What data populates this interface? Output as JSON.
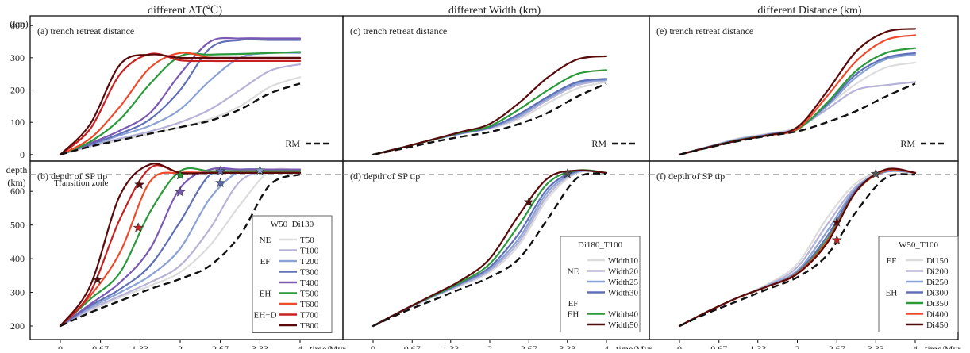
{
  "columns": [
    {
      "header": "different ΔT(℃)"
    },
    {
      "header": "different Width (km)"
    },
    {
      "header": "different Distance (km)"
    }
  ],
  "top_yunit": "(km)",
  "bottom_yunit": [
    "depth",
    "(km)"
  ],
  "xlabel": "time/Myr",
  "xticks": [
    "0",
    "0.67",
    "1.33",
    "2",
    "2.67",
    "3.33",
    "4"
  ],
  "top_yticks": [
    "0",
    "100",
    "200",
    "300",
    "400"
  ],
  "bottom_yticks": [
    "200",
    "300",
    "400",
    "500",
    "600"
  ],
  "transition_label": "Transition zone",
  "rm_label": "RM",
  "chart_data": [
    {
      "panel": "a",
      "type": "line",
      "title": "(a) trench retreat distance",
      "xlim": [
        0,
        4
      ],
      "ylim": [
        -20,
        430
      ],
      "x": [
        0,
        0.5,
        1,
        1.5,
        2,
        2.5,
        3,
        3.5,
        4
      ],
      "rm": [
        0,
        25,
        45,
        65,
        85,
        105,
        140,
        190,
        220
      ],
      "series": [
        {
          "name": "T50",
          "color": "#dcdcdc",
          "values": [
            0,
            25,
            45,
            65,
            85,
            110,
            150,
            210,
            240
          ]
        },
        {
          "name": "T100",
          "color": "#b7b3d8",
          "values": [
            0,
            28,
            50,
            72,
            100,
            140,
            200,
            260,
            280
          ]
        },
        {
          "name": "T200",
          "color": "#8aa2d6",
          "values": [
            0,
            30,
            60,
            90,
            140,
            230,
            300,
            315,
            315
          ]
        },
        {
          "name": "T300",
          "color": "#6070b8",
          "values": [
            0,
            32,
            65,
            110,
            200,
            330,
            355,
            355,
            355
          ]
        },
        {
          "name": "T400",
          "color": "#7b5ab5",
          "values": [
            0,
            35,
            75,
            130,
            250,
            350,
            360,
            360,
            360
          ]
        },
        {
          "name": "T500",
          "color": "#2a9a3a",
          "values": [
            0,
            40,
            110,
            220,
            305,
            310,
            312,
            315,
            318
          ]
        },
        {
          "name": "T600",
          "color": "#f04a2a",
          "values": [
            0,
            50,
            150,
            270,
            315,
            300,
            298,
            298,
            298
          ]
        },
        {
          "name": "T700",
          "color": "#c82020",
          "values": [
            0,
            80,
            250,
            312,
            292,
            290,
            290,
            290,
            290
          ]
        },
        {
          "name": "T800",
          "color": "#5a0a0a",
          "values": [
            0,
            95,
            280,
            310,
            300,
            300,
            300,
            300,
            300
          ]
        }
      ],
      "legend": {
        "title": "W50_Di130",
        "groups": [
          {
            "label": "NE",
            "members": [
              "T50"
            ]
          },
          {
            "label": "EF",
            "members": [
              "T100",
              "T200",
              "T300",
              "T400"
            ]
          },
          {
            "label": "EH",
            "members": [
              "T500"
            ]
          },
          {
            "label": "EH−D",
            "members": [
              "T600",
              "T700",
              "T800"
            ]
          }
        ]
      }
    },
    {
      "panel": "b",
      "type": "line",
      "title": "(b) depth of SP tip",
      "xlim": [
        0,
        4
      ],
      "ylim": [
        160,
        690
      ],
      "x": [
        0,
        0.5,
        1,
        1.5,
        2,
        2.5,
        3,
        3.5,
        4
      ],
      "rm": [
        200,
        240,
        275,
        310,
        340,
        380,
        470,
        620,
        650
      ],
      "series": [
        {
          "name": "T50",
          "color": "#dcdcdc",
          "values": [
            200,
            245,
            285,
            320,
            360,
            440,
            560,
            660,
            660
          ]
        },
        {
          "name": "T100",
          "color": "#b7b3d8",
          "values": [
            200,
            250,
            290,
            330,
            380,
            490,
            630,
            660,
            660
          ]
        },
        {
          "name": "T200",
          "color": "#8aa2d6",
          "values": [
            200,
            255,
            300,
            350,
            430,
            580,
            660,
            660,
            660
          ]
        },
        {
          "name": "T300",
          "color": "#6070b8",
          "values": [
            200,
            260,
            310,
            380,
            510,
            650,
            665,
            665,
            665
          ]
        },
        {
          "name": "T400",
          "color": "#7b5ab5",
          "values": [
            200,
            265,
            330,
            430,
            610,
            665,
            665,
            665,
            665
          ]
        },
        {
          "name": "T500",
          "color": "#2a9a3a",
          "values": [
            200,
            280,
            360,
            540,
            660,
            660,
            660,
            660,
            660
          ]
        },
        {
          "name": "T600",
          "color": "#f04a2a",
          "values": [
            200,
            290,
            420,
            630,
            655,
            655,
            655,
            655,
            655
          ]
        },
        {
          "name": "T700",
          "color": "#c82020",
          "values": [
            200,
            300,
            520,
            670,
            655,
            655,
            655,
            655,
            655
          ]
        },
        {
          "name": "T800",
          "color": "#5a0a0a",
          "values": [
            200,
            320,
            590,
            680,
            655,
            655,
            655,
            655,
            655
          ]
        }
      ],
      "stars": [
        {
          "x": 0.62,
          "y": 338,
          "color": "#5a0a0a"
        },
        {
          "x": 1.3,
          "y": 492,
          "color": "#c82020"
        },
        {
          "x": 1.32,
          "y": 620,
          "color": "#5a0a0a"
        },
        {
          "x": 2,
          "y": 598,
          "color": "#7b5ab5"
        },
        {
          "x": 2,
          "y": 648,
          "color": "#2a9a3a"
        },
        {
          "x": 2.67,
          "y": 625,
          "color": "#6070b8"
        },
        {
          "x": 2.67,
          "y": 660,
          "color": "#6070b8"
        },
        {
          "x": 3.33,
          "y": 662,
          "color": "#8aa2d6"
        }
      ],
      "transition_y": 650
    },
    {
      "panel": "c",
      "type": "line",
      "title": "(c) trench retreat distance",
      "xlim": [
        0,
        4
      ],
      "ylim": [
        -20,
        430
      ],
      "x": [
        0,
        0.5,
        1,
        1.5,
        2,
        2.5,
        3,
        3.5,
        4
      ],
      "rm": [
        0,
        18,
        38,
        55,
        70,
        95,
        130,
        180,
        220
      ],
      "series": [
        {
          "name": "Width10",
          "color": "#dcdcdc",
          "values": [
            0,
            22,
            45,
            65,
            80,
            110,
            160,
            205,
            225
          ]
        },
        {
          "name": "Width20",
          "color": "#b7b3d8",
          "values": [
            0,
            22,
            45,
            65,
            82,
            115,
            170,
            215,
            230
          ]
        },
        {
          "name": "Width25",
          "color": "#8aa2d6",
          "values": [
            0,
            22,
            45,
            65,
            83,
            120,
            175,
            220,
            232
          ]
        },
        {
          "name": "Width30",
          "color": "#6070b8",
          "values": [
            0,
            22,
            45,
            66,
            84,
            125,
            180,
            225,
            235
          ]
        },
        {
          "name": "Width40",
          "color": "#2a9a3a",
          "values": [
            0,
            22,
            45,
            68,
            88,
            140,
            200,
            250,
            262
          ]
        },
        {
          "name": "Width50",
          "color": "#5a0a0a",
          "values": [
            0,
            22,
            46,
            70,
            95,
            160,
            240,
            295,
            305
          ]
        }
      ]
    },
    {
      "panel": "d",
      "type": "line",
      "title": "(d) depth of SP tip",
      "xlim": [
        0,
        4
      ],
      "ylim": [
        160,
        690
      ],
      "x": [
        0,
        0.5,
        1,
        1.5,
        2,
        2.5,
        3,
        3.5,
        4
      ],
      "rm": [
        200,
        240,
        275,
        310,
        345,
        400,
        520,
        640,
        652
      ],
      "series": [
        {
          "name": "Width10",
          "color": "#dcdcdc",
          "values": [
            200,
            245,
            285,
            320,
            360,
            440,
            580,
            655,
            655
          ]
        },
        {
          "name": "Width20",
          "color": "#b7b3d8",
          "values": [
            200,
            245,
            285,
            322,
            365,
            450,
            590,
            657,
            655
          ]
        },
        {
          "name": "Width25",
          "color": "#8aa2d6",
          "values": [
            200,
            245,
            286,
            325,
            370,
            460,
            600,
            658,
            655
          ]
        },
        {
          "name": "Width30",
          "color": "#6070b8",
          "values": [
            200,
            245,
            287,
            327,
            375,
            475,
            610,
            660,
            655
          ]
        },
        {
          "name": "Width40",
          "color": "#2a9a3a",
          "values": [
            200,
            246,
            288,
            330,
            385,
            500,
            625,
            662,
            655
          ]
        },
        {
          "name": "Width50",
          "color": "#5a0a0a",
          "values": [
            200,
            246,
            290,
            335,
            400,
            530,
            640,
            662,
            655
          ]
        }
      ],
      "stars": [
        {
          "x": 2.67,
          "y": 568,
          "color": "#5a0a0a"
        },
        {
          "x": 3.33,
          "y": 652,
          "color": "#555555"
        }
      ],
      "transition_y": 650,
      "legend": {
        "title": "Di180_T100",
        "groups": [
          {
            "label": "NE",
            "members": [
              "Width10",
              "Width20",
              "Width25",
              "Width30"
            ]
          },
          {
            "label": "EF",
            "members": []
          },
          {
            "label": "EH",
            "members": [
              "Width40",
              "Width50"
            ]
          }
        ]
      }
    },
    {
      "panel": "e",
      "type": "line",
      "title": "(e) trench retreat distance",
      "xlim": [
        0,
        4
      ],
      "ylim": [
        -20,
        430
      ],
      "x": [
        0,
        0.5,
        1,
        1.5,
        2,
        2.5,
        3,
        3.5,
        4
      ],
      "rm": [
        0,
        22,
        42,
        58,
        72,
        100,
        135,
        180,
        220
      ],
      "series": [
        {
          "name": "Di150",
          "color": "#dcdcdc",
          "values": [
            0,
            25,
            50,
            65,
            85,
            150,
            220,
            270,
            285
          ]
        },
        {
          "name": "Di200",
          "color": "#b7b3d8",
          "values": [
            0,
            25,
            48,
            63,
            82,
            140,
            200,
            215,
            225
          ]
        },
        {
          "name": "Di250",
          "color": "#8aa2d6",
          "values": [
            0,
            24,
            47,
            62,
            80,
            150,
            240,
            295,
            310
          ]
        },
        {
          "name": "Di300",
          "color": "#6070b8",
          "values": [
            0,
            24,
            46,
            62,
            80,
            155,
            250,
            300,
            315
          ]
        },
        {
          "name": "Di350",
          "color": "#2a9a3a",
          "values": [
            0,
            23,
            45,
            60,
            78,
            160,
            260,
            315,
            330
          ]
        },
        {
          "name": "Di400",
          "color": "#f04a2a",
          "values": [
            0,
            23,
            44,
            60,
            80,
            180,
            290,
            355,
            370
          ]
        },
        {
          "name": "Di450",
          "color": "#5a0a0a",
          "values": [
            0,
            23,
            44,
            60,
            85,
            195,
            320,
            380,
            390
          ]
        }
      ]
    },
    {
      "panel": "f",
      "type": "line",
      "title": "(f) depth of SP tip",
      "xlim": [
        0,
        4
      ],
      "ylim": [
        160,
        690
      ],
      "x": [
        0,
        0.5,
        1,
        1.5,
        2,
        2.5,
        3,
        3.5,
        4
      ],
      "rm": [
        200,
        240,
        275,
        310,
        345,
        410,
        540,
        640,
        650
      ],
      "series": [
        {
          "name": "Di150",
          "color": "#dcdcdc",
          "values": [
            200,
            245,
            285,
            325,
            385,
            520,
            625,
            658,
            655
          ]
        },
        {
          "name": "Di200",
          "color": "#b7b3d8",
          "values": [
            200,
            245,
            285,
            322,
            375,
            500,
            615,
            658,
            655
          ]
        },
        {
          "name": "Di250",
          "color": "#8aa2d6",
          "values": [
            200,
            245,
            285,
            320,
            365,
            480,
            610,
            658,
            655
          ]
        },
        {
          "name": "Di300",
          "color": "#6070b8",
          "values": [
            200,
            245,
            285,
            318,
            360,
            465,
            605,
            660,
            655
          ]
        },
        {
          "name": "Di350",
          "color": "#2a9a3a",
          "values": [
            200,
            245,
            285,
            318,
            358,
            455,
            600,
            662,
            655
          ]
        },
        {
          "name": "Di400",
          "color": "#f04a2a",
          "values": [
            200,
            245,
            285,
            318,
            357,
            450,
            600,
            662,
            655
          ]
        },
        {
          "name": "Di450",
          "color": "#5a0a0a",
          "values": [
            200,
            245,
            285,
            318,
            355,
            445,
            600,
            665,
            655
          ]
        }
      ],
      "stars": [
        {
          "x": 2.67,
          "y": 508,
          "color": "#5a0a0a"
        },
        {
          "x": 2.67,
          "y": 455,
          "color": "#c82020"
        },
        {
          "x": 3.33,
          "y": 652,
          "color": "#555555"
        }
      ],
      "transition_y": 650,
      "legend": {
        "title": "W50_T100",
        "groups": [
          {
            "label": "EF",
            "members": [
              "Di150"
            ]
          },
          {
            "label": "EH",
            "members": [
              "Di200",
              "Di250",
              "Di300",
              "Di350",
              "Di400",
              "Di450"
            ]
          }
        ]
      }
    }
  ]
}
